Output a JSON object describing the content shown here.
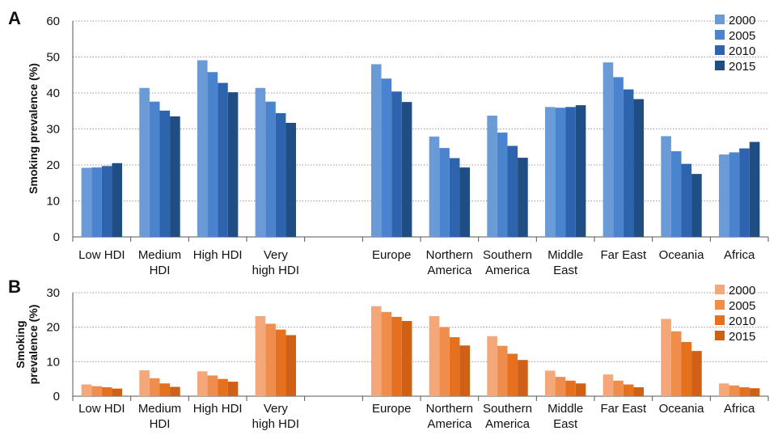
{
  "chart_data": [
    {
      "type": "bar",
      "panel_label": "A",
      "ylabel": "Smoking prevalence (%)",
      "ylim": [
        0,
        60
      ],
      "yticks": [
        0,
        10,
        20,
        30,
        40,
        50,
        60
      ],
      "grid": true,
      "legend_position": "top-right",
      "categories": [
        [
          "Low HDI"
        ],
        [
          "Medium",
          "HDI"
        ],
        [
          "High HDI"
        ],
        [
          "Very",
          "high HDI"
        ],
        [
          ""
        ],
        [
          "Europe"
        ],
        [
          "Northern",
          "America"
        ],
        [
          "Southern",
          "America"
        ],
        [
          "Middle",
          "East"
        ],
        [
          "Far East"
        ],
        [
          "Oceania"
        ],
        [
          "Africa"
        ]
      ],
      "series": [
        {
          "name": "2000",
          "color": "#6b9bd6",
          "values": [
            19.2,
            41.4,
            49.1,
            41.4,
            null,
            48.0,
            27.9,
            33.7,
            36.1,
            48.5,
            28.0,
            22.9
          ]
        },
        {
          "name": "2005",
          "color": "#4a84cf",
          "values": [
            19.3,
            37.6,
            45.8,
            37.6,
            null,
            44.0,
            24.7,
            29.0,
            35.9,
            44.4,
            23.8,
            23.5
          ]
        },
        {
          "name": "2010",
          "color": "#2e63ad",
          "values": [
            19.7,
            35.1,
            42.8,
            34.4,
            null,
            40.4,
            21.9,
            25.3,
            36.1,
            41.0,
            20.3,
            24.6
          ]
        },
        {
          "name": "2015",
          "color": "#1f4e85",
          "values": [
            20.5,
            33.5,
            40.2,
            31.7,
            null,
            37.5,
            19.3,
            22.0,
            36.6,
            38.3,
            17.5,
            26.4
          ]
        }
      ]
    },
    {
      "type": "bar",
      "panel_label": "B",
      "ylabel": [
        "Smoking",
        "prevalence (%)"
      ],
      "ylim": [
        0,
        30
      ],
      "yticks": [
        0,
        10,
        20,
        30
      ],
      "grid": true,
      "legend_position": "top-right",
      "categories": [
        [
          "Low HDI"
        ],
        [
          "Medium",
          "HDI"
        ],
        [
          "High HDI"
        ],
        [
          "Very",
          "high HDI"
        ],
        [
          ""
        ],
        [
          "Europe"
        ],
        [
          "Northern",
          "America"
        ],
        [
          "Southern",
          "America"
        ],
        [
          "Middle",
          "East"
        ],
        [
          "Far East"
        ],
        [
          "Oceania"
        ],
        [
          "Africa"
        ]
      ],
      "series": [
        {
          "name": "2000",
          "color": "#f4a778",
          "values": [
            3.4,
            7.5,
            7.2,
            23.2,
            null,
            26.1,
            23.2,
            17.4,
            7.4,
            6.3,
            22.4,
            3.7
          ]
        },
        {
          "name": "2005",
          "color": "#f08d4d",
          "values": [
            2.9,
            5.2,
            6.0,
            21.0,
            null,
            24.4,
            20.0,
            14.6,
            5.6,
            4.5,
            18.8,
            3.1
          ]
        },
        {
          "name": "2010",
          "color": "#e5711f",
          "values": [
            2.6,
            3.7,
            5.0,
            19.3,
            null,
            23.0,
            17.1,
            12.3,
            4.5,
            3.4,
            15.7,
            2.6
          ]
        },
        {
          "name": "2015",
          "color": "#d06016",
          "values": [
            2.2,
            2.7,
            4.2,
            17.7,
            null,
            21.8,
            14.7,
            10.5,
            3.7,
            2.6,
            13.1,
            2.3
          ]
        }
      ]
    }
  ]
}
